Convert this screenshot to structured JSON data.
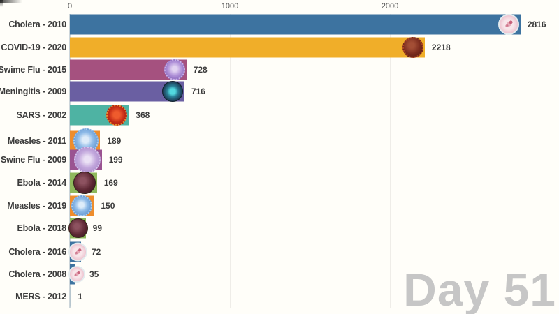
{
  "chart_data": {
    "type": "bar",
    "orientation": "horizontal",
    "day_counter": "Day 51",
    "x_axis": {
      "tick_labels": [
        "0",
        "1000",
        "2000"
      ],
      "tick_values": [
        0,
        1000,
        2000
      ],
      "range": [
        0,
        3000
      ],
      "gridlines": true
    },
    "legend": null,
    "bars": [
      {
        "label": "Cholera - 2010",
        "value": 2816,
        "color": "#3d73a0",
        "icon": "cholera-bacteria-icon"
      },
      {
        "label": "COVID-19 - 2020",
        "value": 2218,
        "color": "#f0ae29",
        "icon": "coronavirus-icon"
      },
      {
        "label": "Swime Flu - 2015",
        "value": 728,
        "color": "#a5517f",
        "icon": "influenza-virus-icon"
      },
      {
        "label": "Meningitis - 2009",
        "value": 716,
        "color": "#6a5fa2",
        "icon": "meningitis-bacteria-icon"
      },
      {
        "label": "SARS - 2002",
        "value": 368,
        "color": "#4eb3a3",
        "icon": "sars-virus-icon"
      },
      {
        "label": "Measles - 2011",
        "value": 189,
        "color": "#ee8d2d",
        "icon": "measles-virus-icon"
      },
      {
        "label": "Swine Flu - 2009",
        "value": 199,
        "color": "#9a5391",
        "icon": "swine-flu-virus-icon"
      },
      {
        "label": "Ebola - 2014",
        "value": 169,
        "color": "#8fb95d",
        "icon": "ebola-virus-icon"
      },
      {
        "label": "Measles - 2019",
        "value": 150,
        "color": "#ee8d2d",
        "icon": "measles-virus-icon"
      },
      {
        "label": "Ebola - 2018",
        "value": 99,
        "color": "#8fb95d",
        "icon": "ebola-virus-icon"
      },
      {
        "label": "Cholera - 2016",
        "value": 72,
        "color": "#3d73a0",
        "icon": "cholera-bacteria-icon"
      },
      {
        "label": "Cholera - 2008",
        "value": 35,
        "color": "#3d73a0",
        "icon": "cholera-bacteria-icon"
      },
      {
        "label": "MERS - 2012",
        "value": 1,
        "color": "#b7c6ce",
        "icon": null
      }
    ]
  },
  "colors": {
    "background": "#fffef9",
    "axis_line": "#ccd5da",
    "gridline": "#efede8",
    "label_text": "#3c3c3c",
    "value_text": "#3b3b3b",
    "tick_text": "#555555",
    "day_counter_text": "#c6c6c6"
  }
}
